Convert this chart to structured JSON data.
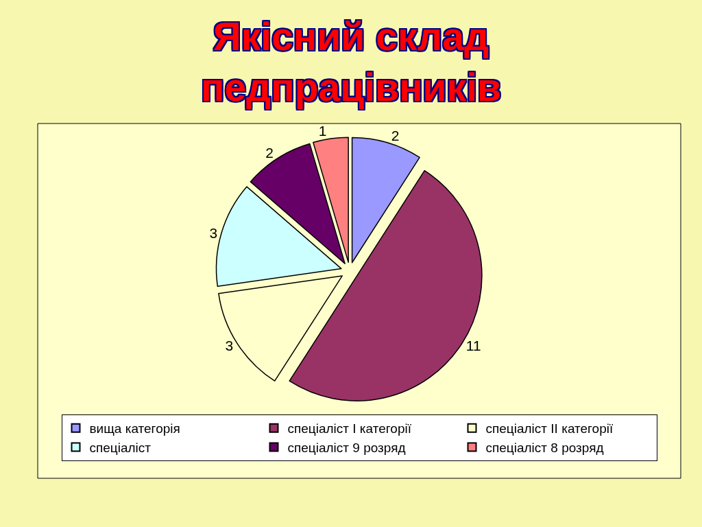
{
  "chart_data": {
    "type": "pie",
    "title": "Якісний склад педпрацівників",
    "categories": [
      "вища категорія",
      "спеціаліст I категорії",
      "спеціаліст II категорії",
      "спеціаліст",
      "спеціаліст 9 розряд",
      "спеціаліст 8 розряд"
    ],
    "values": [
      2,
      11,
      3,
      3,
      2,
      1
    ],
    "colors": [
      "#9999ff",
      "#993366",
      "#ffffcc",
      "#ccffff",
      "#660066",
      "#ff8080"
    ],
    "data_labels": true,
    "legend": "bottom"
  }
}
